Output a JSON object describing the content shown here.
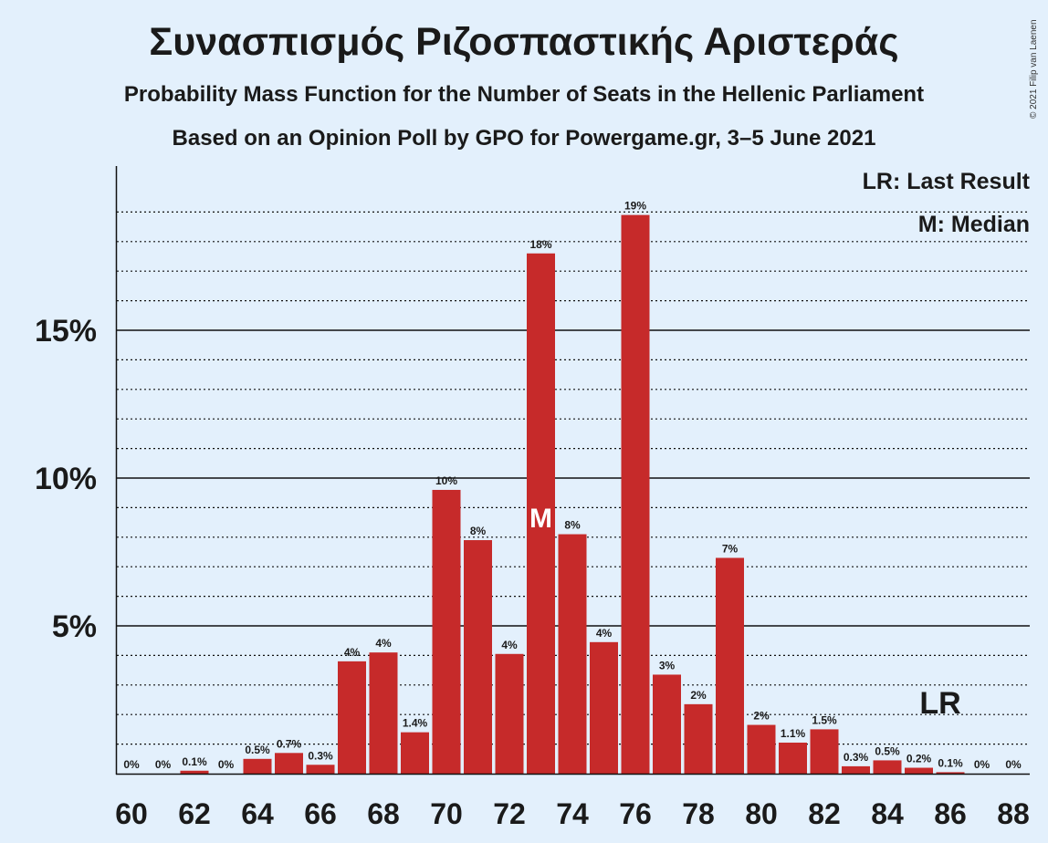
{
  "copyright": "© 2021 Filip van Laenen",
  "legend": {
    "lr": "LR: Last Result",
    "m": "M: Median"
  },
  "chart_data": {
    "type": "bar",
    "title": "Συνασπισμός Ριζοσπαστικής Αριστεράς",
    "subtitle1": "Probability Mass Function for the Number of Seats in the Hellenic Parliament",
    "subtitle2": "Based on an Opinion Poll by GPO for Powergame.gr, 3–5 June 2021",
    "x": [
      60,
      61,
      62,
      63,
      64,
      65,
      66,
      67,
      68,
      69,
      70,
      71,
      72,
      73,
      74,
      75,
      76,
      77,
      78,
      79,
      80,
      81,
      82,
      83,
      84,
      85,
      86,
      87,
      88
    ],
    "values": [
      0,
      0,
      0.1,
      0,
      0.5,
      0.7,
      0.3,
      3.8,
      4.1,
      1.4,
      9.6,
      7.9,
      4.05,
      17.6,
      8.1,
      4.45,
      18.9,
      3.35,
      2.35,
      7.3,
      1.65,
      1.05,
      1.5,
      0.25,
      0.45,
      0.2,
      0.05,
      0,
      0
    ],
    "labels": [
      "0%",
      "0%",
      "0.1%",
      "0%",
      "0.5%",
      "0.7%",
      "0.3%",
      "4%",
      "4%",
      "1.4%",
      "10%",
      "8%",
      "4%",
      "18%",
      "8%",
      "4%",
      "19%",
      "3%",
      "2%",
      "7%",
      "2%",
      "1.1%",
      "1.5%",
      "0.3%",
      "0.5%",
      "0.2%",
      "0.1%",
      "0%",
      "0%"
    ],
    "x_tick_labels": [
      "60",
      "62",
      "64",
      "66",
      "68",
      "70",
      "72",
      "74",
      "76",
      "78",
      "80",
      "82",
      "84",
      "86",
      "88"
    ],
    "y_tick_labels": [
      "5%",
      "10%",
      "15%"
    ],
    "y_ticks": [
      5,
      10,
      15
    ],
    "ylim": [
      0,
      20.5
    ],
    "median": {
      "x": 73,
      "label": "M"
    },
    "last_result": {
      "x": 86,
      "label": "LR"
    },
    "bar_color": "#c62a2a",
    "grid": "dotted minor, solid major"
  }
}
